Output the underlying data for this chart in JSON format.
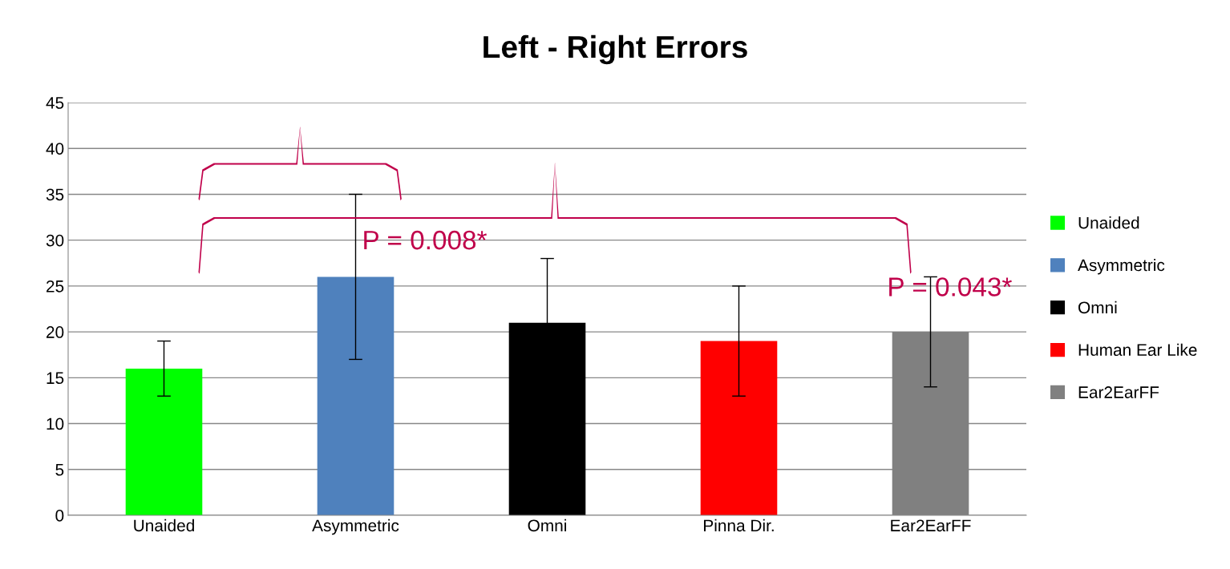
{
  "chart_data": {
    "type": "bar",
    "title": "Left - Right Errors",
    "categories": [
      "Unaided",
      "Asymmetric",
      "Omni",
      "Pinna Dir.",
      "Ear2EarFF"
    ],
    "series": [
      {
        "name": "Unaided",
        "color": "#00ff00",
        "values": [
          16,
          null,
          null,
          null,
          null
        ],
        "errors": [
          3,
          null,
          null,
          null,
          null
        ]
      },
      {
        "name": "Asymmetric",
        "color": "#4f81bd",
        "values": [
          null,
          26,
          null,
          null,
          null
        ],
        "errors": [
          null,
          9,
          null,
          null,
          null
        ]
      },
      {
        "name": "Omni",
        "color": "#000000",
        "values": [
          null,
          null,
          21,
          null,
          null
        ],
        "errors": [
          null,
          null,
          7,
          null,
          null
        ]
      },
      {
        "name": "Human Ear Like",
        "color": "#ff0000",
        "values": [
          null,
          null,
          null,
          19,
          null
        ],
        "errors": [
          null,
          null,
          null,
          6,
          null
        ]
      },
      {
        "name": "Ear2EarFF",
        "color": "#808080",
        "values": [
          null,
          null,
          null,
          null,
          20
        ],
        "errors": [
          null,
          null,
          null,
          null,
          6
        ]
      }
    ],
    "ylim": [
      0,
      45
    ],
    "yticks": [
      0,
      5,
      10,
      15,
      20,
      25,
      30,
      35,
      40,
      45
    ],
    "grid": "y",
    "legend": "right",
    "annotations": [
      "P = 0.008*",
      "P = 0.043*"
    ]
  }
}
